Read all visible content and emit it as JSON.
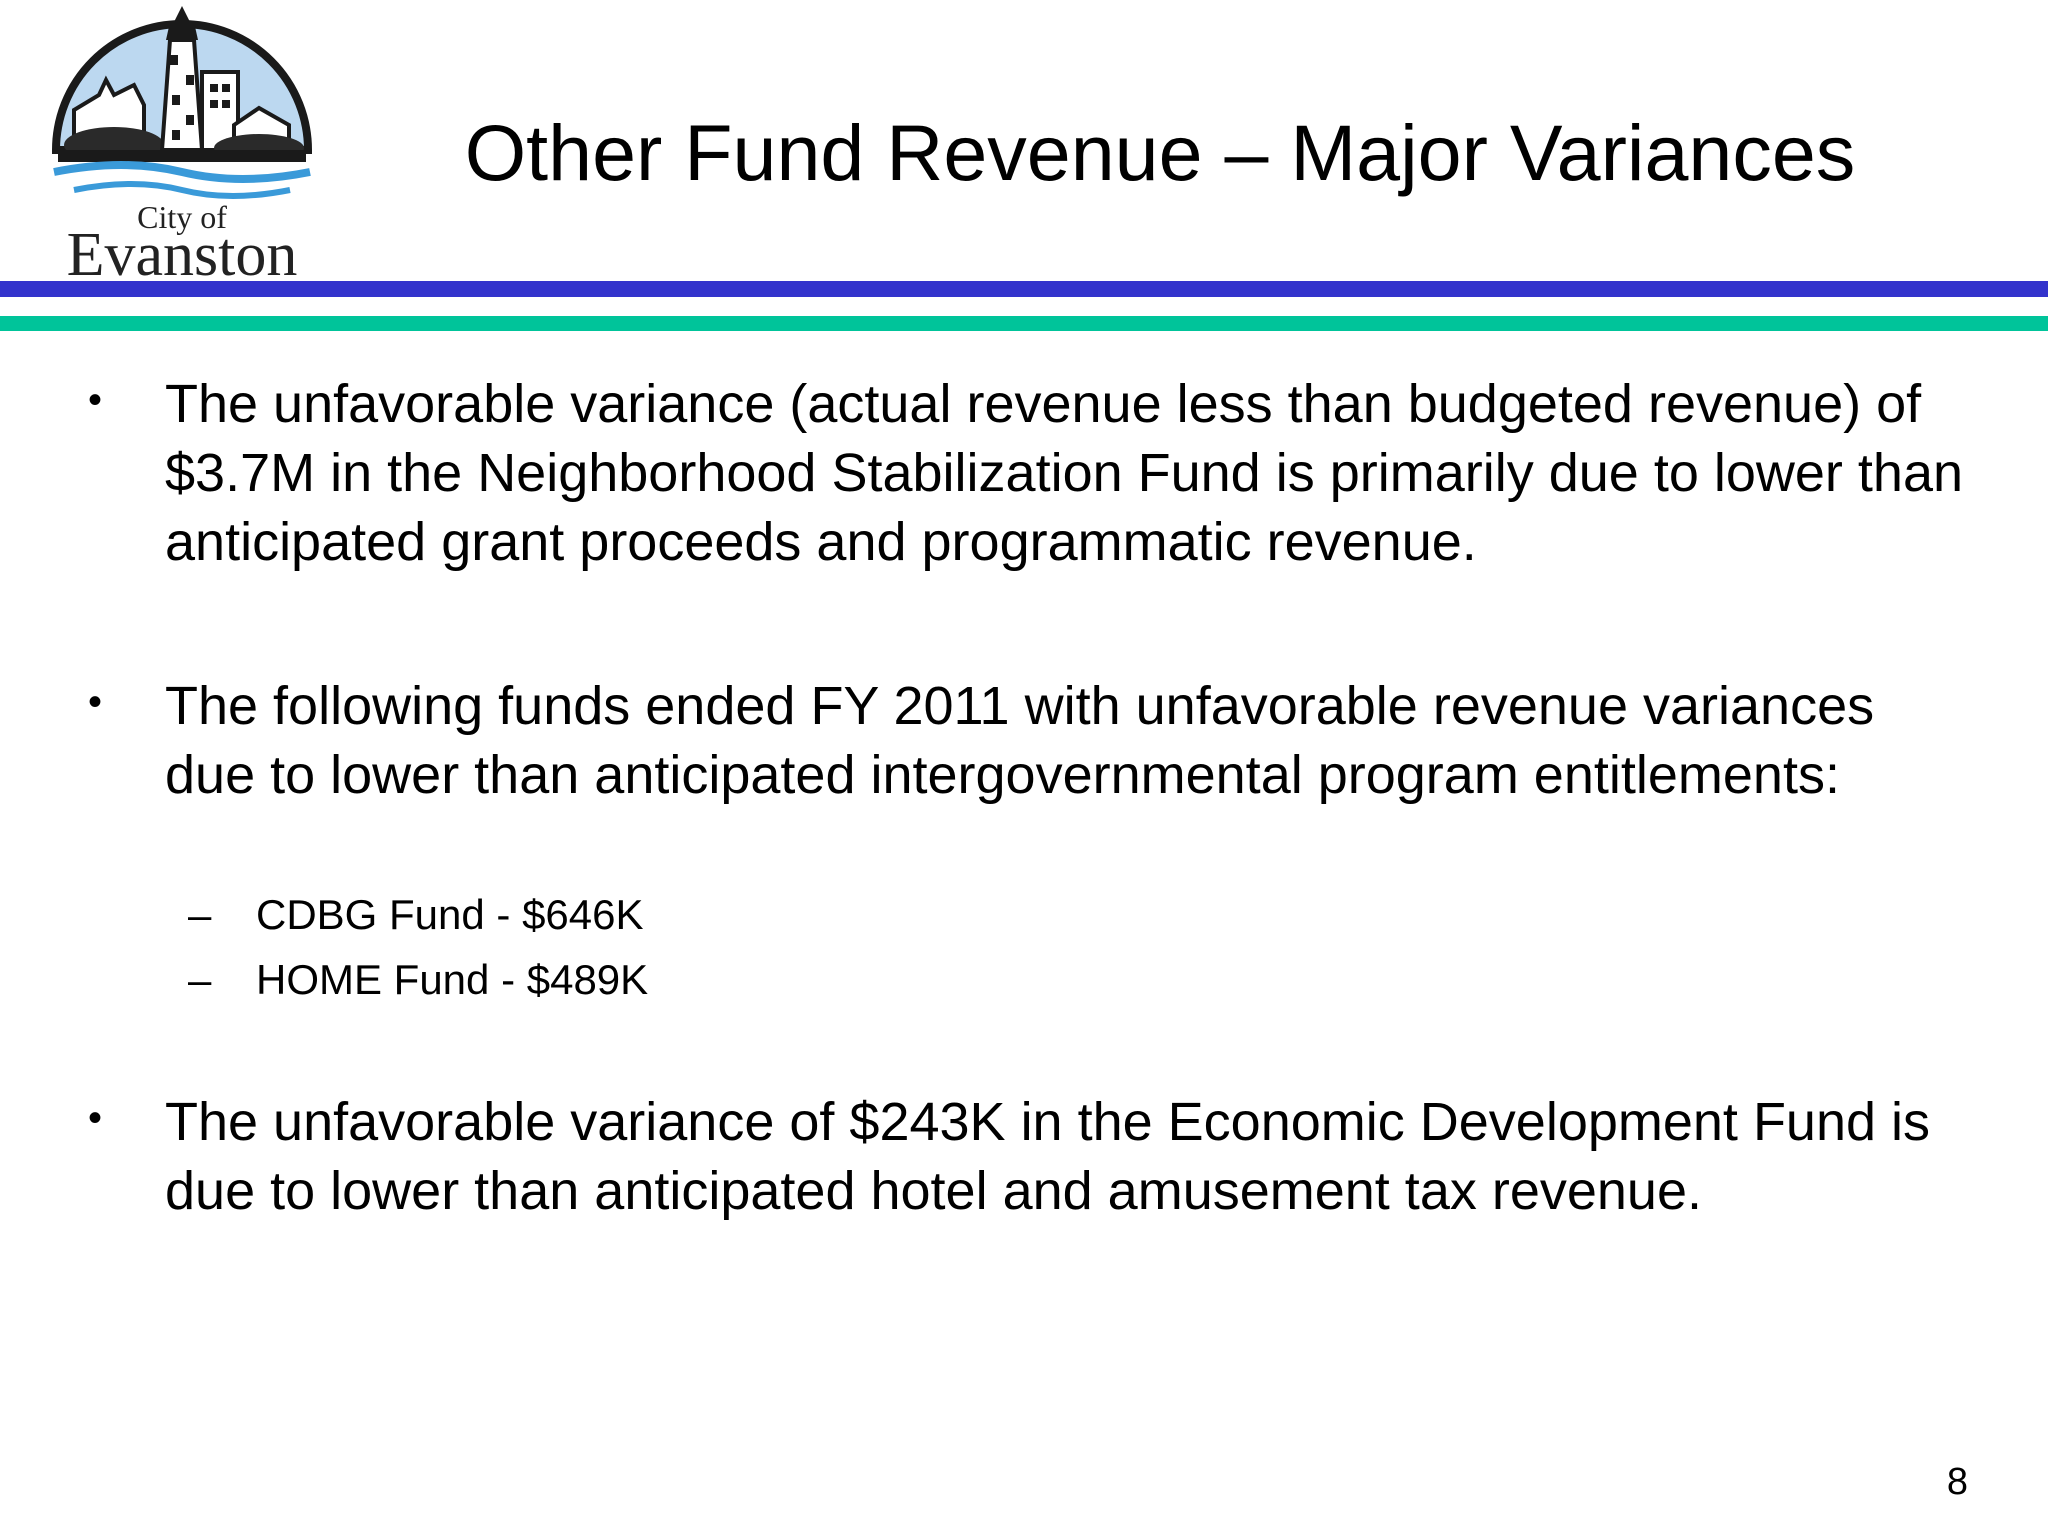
{
  "header": {
    "logo": {
      "line1": "City of",
      "line2": "Evanston"
    },
    "title": "Other Fund Revenue – Major Variances"
  },
  "colors": {
    "rule_blue": "#3333cc",
    "rule_teal": "#00c49a",
    "logo_sky": "#bcd8f0",
    "logo_water": "#3a9ad9"
  },
  "bullets": [
    {
      "marker": "•",
      "text": "The unfavorable variance (actual revenue less than budgeted revenue) of $3.7M in the Neighborhood Stabilization Fund is primarily due to lower than anticipated grant proceeds and programmatic revenue."
    },
    {
      "marker": "•",
      "text": "The following funds ended FY 2011 with unfavorable revenue variances due to lower than anticipated intergovernmental program entitlements:",
      "sub_items": [
        {
          "marker": "–",
          "text": "CDBG Fund - $646K"
        },
        {
          "marker": "–",
          "text": "HOME Fund - $489K"
        }
      ]
    },
    {
      "marker": "•",
      "text": "The unfavorable variance of $243K in the Economic Development Fund is due to lower than anticipated hotel and amusement tax revenue."
    }
  ],
  "footer": {
    "page_number": "8"
  }
}
